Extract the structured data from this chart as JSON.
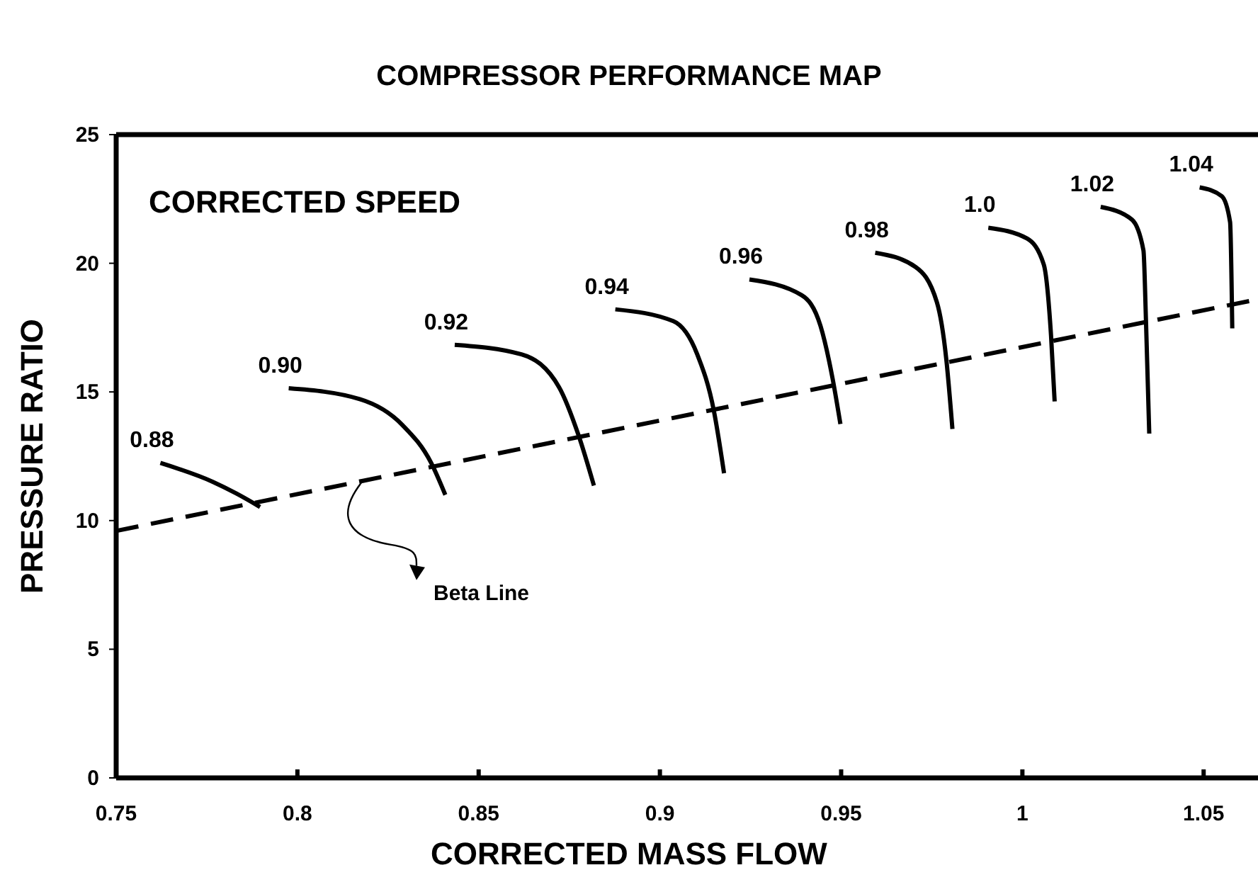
{
  "chart_data": {
    "type": "line",
    "title": "COMPRESSOR PERFORMANCE MAP",
    "xlabel": "CORRECTED MASS FLOW",
    "ylabel": "PRESSURE RATIO",
    "xlim": [
      0.75,
      1.065
    ],
    "ylim": [
      0,
      25
    ],
    "xticks": [
      0.75,
      0.8,
      0.85,
      0.9,
      0.95,
      1,
      1.05
    ],
    "yticks": [
      0,
      5,
      10,
      15,
      20,
      25
    ],
    "grid": false,
    "marker": "none",
    "annotations": [
      "CORRECTED SPEED",
      {
        "text": "Beta Line",
        "x": 0.818,
        "y": 11.54
      }
    ],
    "series": [
      {
        "name": "0.88",
        "color": "#000000",
        "line_style": "solid",
        "x": [
          0.7622,
          0.7766,
          0.7832,
          0.7897
        ],
        "values": [
          12.24,
          11.51,
          11.05,
          10.53
        ]
      },
      {
        "name": "0.90",
        "color": "#000000",
        "line_style": "solid",
        "x": [
          0.7976,
          0.8172,
          0.829,
          0.8369,
          0.8408
        ],
        "values": [
          15.14,
          14.72,
          13.71,
          12.24,
          11.0
        ]
      },
      {
        "name": "0.92",
        "color": "#000000",
        "line_style": "solid",
        "x": [
          0.8434,
          0.8618,
          0.8722,
          0.8775,
          0.8818
        ],
        "values": [
          16.83,
          16.46,
          15.18,
          13.34,
          11.36
        ]
      },
      {
        "name": "0.94",
        "color": "#000000",
        "line_style": "solid",
        "x": [
          0.8877,
          0.9037,
          0.9103,
          0.9149,
          0.9177
        ],
        "values": [
          18.21,
          17.75,
          16.46,
          14.26,
          11.84
        ]
      },
      {
        "name": "0.96",
        "color": "#000000",
        "line_style": "solid",
        "x": [
          0.9247,
          0.9391,
          0.9443,
          0.9476,
          0.9498
        ],
        "values": [
          19.37,
          18.76,
          17.57,
          15.55,
          13.75
        ]
      },
      {
        "name": "0.98",
        "color": "#000000",
        "line_style": "solid",
        "x": [
          0.9594,
          0.9705,
          0.9764,
          0.979,
          0.9807
        ],
        "values": [
          20.41,
          19.86,
          18.49,
          16.28,
          13.56
        ]
      },
      {
        "name": "1.0",
        "color": "#000000",
        "line_style": "solid",
        "x": [
          0.9906,
          1.0013,
          1.0059,
          1.0079,
          1.0089
        ],
        "values": [
          21.38,
          20.96,
          19.95,
          17.2,
          14.63
        ]
      },
      {
        "name": "1.02",
        "color": "#000000",
        "line_style": "solid",
        "x": [
          1.0216,
          1.0302,
          1.0334,
          1.0341,
          1.035
        ],
        "values": [
          22.19,
          21.7,
          20.5,
          17.75,
          13.38
        ]
      },
      {
        "name": "1.04",
        "color": "#000000",
        "line_style": "solid",
        "x": [
          1.0489,
          1.055,
          1.0573,
          1.0579
        ],
        "values": [
          22.95,
          22.61,
          21.6,
          17.47
        ]
      },
      {
        "color": "#000000",
        "line_style": "dashed",
        "x": [
          0.75,
          1.065
        ],
        "values": [
          9.6,
          18.6
        ]
      }
    ]
  }
}
